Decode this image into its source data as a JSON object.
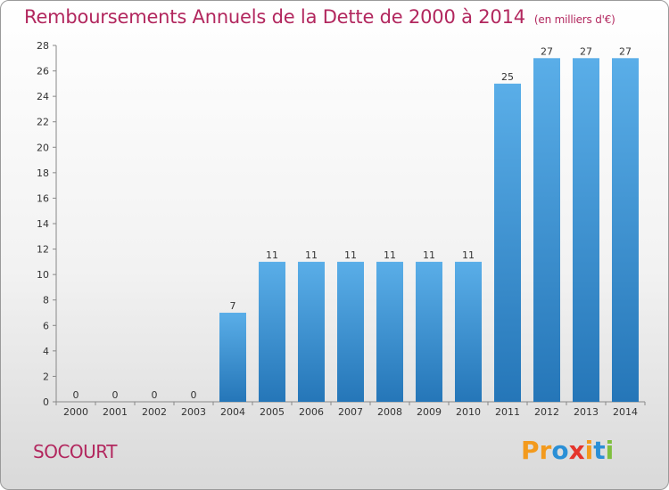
{
  "title": "Remboursements Annuels de la Dette de 2000 à 2014",
  "unit_note": "(en milliers d'€)",
  "commune": "SOCOURT",
  "logo": {
    "letters": [
      "P",
      "r",
      "o",
      "x",
      "i",
      "t",
      "i"
    ],
    "colors": [
      "#f39a1d",
      "#f39a1d",
      "#2a8fd6",
      "#e5352c",
      "#f39a1d",
      "#2a8fd6",
      "#7fbf3f"
    ]
  },
  "colors": {
    "bar_light": "#5aaee8",
    "bar_dark": "#2576b8",
    "title": "#b2275e"
  },
  "chart_data": {
    "type": "bar",
    "categories": [
      "2000",
      "2001",
      "2002",
      "2003",
      "2004",
      "2005",
      "2006",
      "2007",
      "2008",
      "2009",
      "2010",
      "2011",
      "2012",
      "2013",
      "2014"
    ],
    "values": [
      0,
      0,
      0,
      0,
      7,
      11,
      11,
      11,
      11,
      11,
      11,
      25,
      27,
      27,
      27
    ],
    "ylim": [
      0,
      28
    ],
    "yticks": [
      0,
      2,
      4,
      6,
      8,
      10,
      12,
      14,
      16,
      18,
      20,
      22,
      24,
      26,
      28
    ],
    "grid": false
  }
}
